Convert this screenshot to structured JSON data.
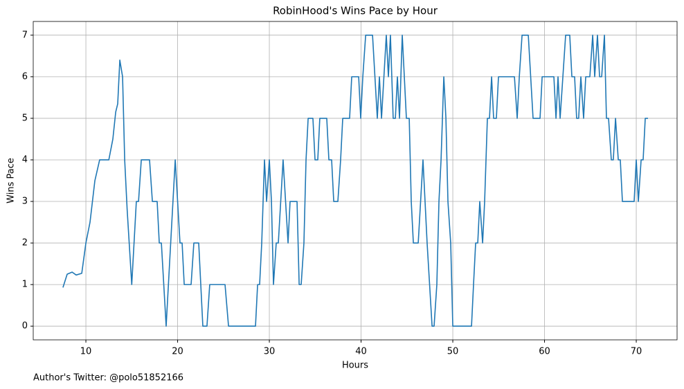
{
  "chart_data": {
    "type": "line",
    "title": "RobinHood's Wins Pace by Hour",
    "xlabel": "Hours",
    "ylabel": "Wins Pace",
    "annotation": "Author's Twitter: @polo51852166",
    "x": [
      7.5,
      7.96,
      8.5,
      8.94,
      9.55,
      10,
      10.45,
      10.98,
      11.5,
      12.5,
      12.94,
      13.25,
      13.47,
      13.7,
      14.0,
      14.23,
      14.5,
      15.0,
      15.5,
      15.74,
      16.04,
      16.94,
      17.25,
      17.77,
      18.0,
      18.23,
      18.75,
      19.74,
      20.26,
      20.49,
      20.72,
      21.47,
      21.77,
      22.3,
      22.75,
      23.2,
      23.5,
      25.17,
      25.55,
      28.49,
      28.72,
      28.94,
      29.17,
      29.47,
      29.7,
      30.0,
      30.23,
      30.45,
      30.75,
      30.98,
      31.5,
      32.04,
      32.26,
      33.02,
      33.25,
      33.47,
      33.77,
      34.0,
      34.23,
      34.75,
      34.98,
      35.28,
      35.5,
      36.26,
      36.49,
      36.79,
      37.02,
      37.47,
      37.77,
      38.0,
      38.75,
      38.98,
      39.74,
      39.96,
      40.19,
      40.5,
      41.25,
      41.77,
      42.0,
      42.23,
      42.75,
      42.98,
      43.2,
      43.5,
      43.74,
      43.96,
      44.19,
      44.49,
      44.94,
      45.25,
      45.47,
      45.7,
      46.23,
      46.75,
      47.2,
      47.74,
      47.96,
      48.26,
      48.49,
      48.72,
      49.02,
      49.25,
      49.47,
      49.77,
      50.0,
      52.04,
      52.26,
      52.49,
      52.72,
      52.94,
      53.25,
      53.47,
      53.77,
      54.0,
      54.23,
      54.45,
      54.75,
      54.98,
      56.72,
      57.02,
      57.25,
      57.55,
      58.23,
      58.75,
      59.51,
      59.74,
      61.02,
      61.25,
      61.47,
      61.7,
      62.0,
      62.3,
      62.75,
      62.98,
      63.28,
      63.5,
      63.72,
      63.96,
      64.26,
      64.49,
      64.94,
      65.25,
      65.47,
      65.77,
      66.0,
      66.23,
      66.53,
      66.75,
      66.98,
      67.28,
      67.5,
      67.74,
      68.04,
      68.26,
      68.49,
      69.77,
      70.0,
      70.23,
      70.53,
      70.75,
      70.98,
      71.28
    ],
    "series": [
      {
        "name": "Wins Pace",
        "color": "#1f77b4",
        "values": [
          0.93,
          1.25,
          1.3,
          1.23,
          1.27,
          2.0,
          2.5,
          3.5,
          4.0,
          4.0,
          4.5,
          5.15,
          5.35,
          6.4,
          6.0,
          4.0,
          2.8,
          1.0,
          3.0,
          3.0,
          4.0,
          4.0,
          3.0,
          3.0,
          2.0,
          2.0,
          0,
          4.0,
          2.0,
          2.0,
          1.0,
          1.0,
          2.0,
          2.0,
          0,
          0,
          1.0,
          1.0,
          0,
          0,
          1.0,
          1.0,
          2.0,
          4.0,
          3.0,
          4.0,
          3.0,
          1.0,
          2.0,
          2.0,
          4.0,
          2.0,
          3.0,
          3.0,
          1.0,
          1.0,
          2.0,
          4.0,
          5.0,
          5.0,
          4.0,
          4.0,
          5.0,
          5.0,
          4.0,
          4.0,
          3.0,
          3.0,
          4.0,
          5.0,
          5.0,
          6.0,
          6.0,
          5.0,
          6.0,
          7.0,
          7.0,
          5.0,
          6.0,
          5.0,
          7.0,
          6.0,
          7.0,
          5.0,
          5.0,
          6.0,
          5.0,
          7.0,
          5.0,
          5.0,
          3.0,
          2.0,
          2.0,
          4.0,
          2.0,
          0,
          0,
          1.0,
          3.0,
          4.0,
          6.0,
          5.0,
          3.0,
          2.0,
          0,
          0,
          1.0,
          2.0,
          2.0,
          3.0,
          2.0,
          3.0,
          5.0,
          5.0,
          6.0,
          5.0,
          5.0,
          6.0,
          6.0,
          5.0,
          6.0,
          7.0,
          7.0,
          5.0,
          5.0,
          6.0,
          6.0,
          5.0,
          6.0,
          5.0,
          6.0,
          7.0,
          7.0,
          6.0,
          6.0,
          5.0,
          5.0,
          6.0,
          5.0,
          6.0,
          6.0,
          7.0,
          6.0,
          7.0,
          6.0,
          6.0,
          7.0,
          5.0,
          5.0,
          4.0,
          4.0,
          5.0,
          4.0,
          4.0,
          3.0,
          3.0,
          4.0,
          3.0,
          4.0,
          4.0,
          5.0,
          5.0
        ]
      }
    ],
    "xlim": [
      4.26,
      74.45
    ],
    "ylim": [
      -0.33,
      7.33
    ],
    "xticks": [
      10,
      20,
      30,
      40,
      50,
      60,
      70
    ],
    "yticks": [
      0,
      1,
      2,
      3,
      4,
      5,
      6,
      7
    ],
    "grid": true
  }
}
